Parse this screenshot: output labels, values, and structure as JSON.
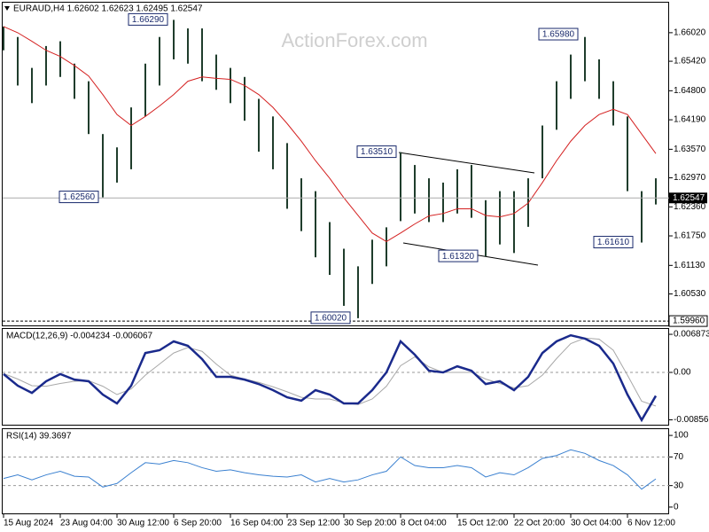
{
  "chart_data": [
    {
      "type": "range-bar",
      "title": "EURAUD,H4  1.62602 1.62623 1.62495 1.62547",
      "watermark": "ActionForex.com",
      "categories": [
        "15 Aug 2024",
        null,
        null,
        null,
        "23 Aug 04:00",
        null,
        null,
        null,
        "30 Aug 12:00",
        null,
        null,
        null,
        "6 Sep 20:00",
        null,
        null,
        null,
        "16 Sep 04:00",
        null,
        null,
        null,
        "23 Sep 12:00",
        null,
        null,
        null,
        "30 Sep 20:00",
        null,
        null,
        null,
        "8 Oct 04:00",
        null,
        null,
        null,
        "15 Oct 12:00",
        null,
        null,
        null,
        "22 Oct 20:00",
        null,
        null,
        null,
        "30 Oct 04:00",
        null,
        null,
        null,
        "6 Nov 12:00",
        null,
        null
      ],
      "bar_color": "#1f3d2c",
      "high": [
        1.6615,
        1.6593,
        1.6528,
        1.6574,
        1.6584,
        1.6537,
        1.65,
        1.6389,
        1.6361,
        1.6445,
        1.6537,
        1.6593,
        1.6629,
        1.6611,
        1.6611,
        1.6556,
        1.6528,
        1.6509,
        1.6463,
        1.6426,
        1.637,
        1.6296,
        1.6269,
        1.6204,
        1.6148,
        1.6111,
        1.6167,
        1.6193,
        1.6351,
        1.6324,
        1.6296,
        1.6287,
        1.6315,
        1.6324,
        1.625,
        1.6269,
        1.6269,
        1.6296,
        1.6407,
        1.65,
        1.6556,
        1.6593,
        1.6546,
        1.65,
        1.6426,
        1.6269,
        1.6296
      ],
      "low": [
        1.6565,
        1.6491,
        1.6454,
        1.6491,
        1.6509,
        1.6463,
        1.6389,
        1.6256,
        1.6287,
        1.6315,
        1.6426,
        1.6491,
        1.6546,
        1.6537,
        1.65,
        1.6482,
        1.6454,
        1.6417,
        1.6352,
        1.6315,
        1.6232,
        1.6185,
        1.613,
        1.6093,
        1.6028,
        1.6002,
        1.6074,
        1.6111,
        1.6206,
        1.6222,
        1.6204,
        1.6204,
        1.6222,
        1.6213,
        1.6132,
        1.6157,
        1.6139,
        1.6194,
        1.6296,
        1.6398,
        1.6463,
        1.65,
        1.6463,
        1.6407,
        1.6269,
        1.6161,
        1.6241
      ],
      "ma": {
        "color": "#d42020",
        "values": [
          1.6615,
          1.6602,
          1.6584,
          1.6565,
          1.6552,
          1.6533,
          1.6511,
          1.6472,
          1.643,
          1.6407,
          1.6426,
          1.6448,
          1.6472,
          1.65,
          1.6509,
          1.6506,
          1.6504,
          1.6491,
          1.6472,
          1.6445,
          1.6411,
          1.6374,
          1.6333,
          1.6296,
          1.6255,
          1.6218,
          1.6181,
          1.6163,
          1.6181,
          1.62,
          1.6217,
          1.6222,
          1.6232,
          1.6232,
          1.6218,
          1.6215,
          1.6222,
          1.6244,
          1.6287,
          1.6333,
          1.6374,
          1.6407,
          1.643,
          1.6441,
          1.643,
          1.6389,
          1.6348
        ]
      },
      "ylim": [
        1.5985,
        1.6667
      ],
      "yticks": [
        {
          "value": 1.6602,
          "label": "1.66020"
        },
        {
          "value": 1.6542,
          "label": "1.65420"
        },
        {
          "value": 1.648,
          "label": "1.64800"
        },
        {
          "value": 1.6419,
          "label": "1.64190"
        },
        {
          "value": 1.6357,
          "label": "1.63570"
        },
        {
          "value": 1.6297,
          "label": "1.62970"
        },
        {
          "value": 1.6236,
          "label": "1.62360"
        },
        {
          "value": 1.6175,
          "label": "1.61750"
        },
        {
          "value": 1.6113,
          "label": "1.61130"
        },
        {
          "value": 1.6053,
          "label": "1.60530"
        }
      ],
      "current_price": 1.62547,
      "support_line": {
        "value": 1.5996,
        "label": "1.59960"
      },
      "annotations": [
        {
          "value": 1.6629,
          "label": "1.66290"
        },
        {
          "value": 1.6598,
          "label": "1.65980"
        },
        {
          "value": 1.6351,
          "label": "1.63510"
        },
        {
          "value": 1.6256,
          "label": "1.62560"
        },
        {
          "value": 1.6132,
          "label": "1.61320"
        },
        {
          "value": 1.6161,
          "label": "1.61610"
        },
        {
          "value": 1.6002,
          "label": "1.60020"
        }
      ]
    },
    {
      "type": "macd",
      "title": "MACD(12,26,9) -0.004234 -0.006067",
      "main": {
        "color": "#1a2a8c",
        "values": [
          -0.0003,
          -0.0024,
          -0.0037,
          -0.0016,
          -0.0003,
          -0.0013,
          -0.0016,
          -0.004,
          -0.0056,
          -0.0024,
          0.0035,
          0.004,
          0.0056,
          0.0048,
          0.0024,
          -0.0008,
          -0.0008,
          -0.0013,
          -0.0021,
          -0.0032,
          -0.0045,
          -0.0051,
          -0.0032,
          -0.004,
          -0.0056,
          -0.0056,
          -0.0032,
          0,
          0.0056,
          0.0032,
          0.0003,
          0,
          0.0011,
          0.0003,
          -0.0021,
          -0.0016,
          -0.0032,
          -0.0008,
          0.0035,
          0.0056,
          0.0067,
          0.0061,
          0.0048,
          0.0016,
          -0.004,
          -0.0086,
          -0.00423
        ]
      },
      "signal": {
        "color": "#a8a8a8",
        "values": [
          -0.0002,
          -0.0012,
          -0.0024,
          -0.0025,
          -0.002,
          -0.0016,
          -0.0015,
          -0.0025,
          -0.004,
          -0.003,
          -0.0005,
          0.0015,
          0.0035,
          0.0045,
          0.0038,
          0.0015,
          -0.0005,
          -0.0012,
          -0.0018,
          -0.0026,
          -0.0035,
          -0.0045,
          -0.0048,
          -0.0048,
          -0.0055,
          -0.0058,
          -0.0048,
          -0.0025,
          0.0012,
          0.0028,
          0.001,
          0,
          0,
          0,
          -0.0012,
          -0.002,
          -0.0028,
          -0.0024,
          -0.0005,
          0.0025,
          0.0052,
          0.0062,
          0.006,
          0.004,
          -0.0005,
          -0.0052,
          -0.00607
        ]
      },
      "ylim": [
        -0.0096,
        0.008
      ],
      "yticks": [
        0.006873,
        {
          "value": 0,
          "label": "0.00"
        },
        -0.00856
      ],
      "dashed_levels": [
        0
      ]
    },
    {
      "type": "rsi",
      "title": "RSI(14) 39.3697",
      "line": {
        "color": "#3a80d0",
        "values": [
          40,
          45,
          38,
          45,
          50,
          43,
          42,
          28,
          33,
          48,
          62,
          60,
          65,
          62,
          55,
          50,
          52,
          48,
          45,
          43,
          42,
          45,
          35,
          40,
          35,
          38,
          45,
          50,
          70,
          58,
          55,
          55,
          58,
          55,
          42,
          48,
          45,
          55,
          68,
          72,
          80,
          75,
          65,
          58,
          45,
          25,
          39.3697
        ]
      },
      "ylim": [
        -10,
        110
      ],
      "yticks": [
        100,
        70,
        30,
        0
      ],
      "dashed_levels": [
        70,
        30
      ]
    }
  ]
}
